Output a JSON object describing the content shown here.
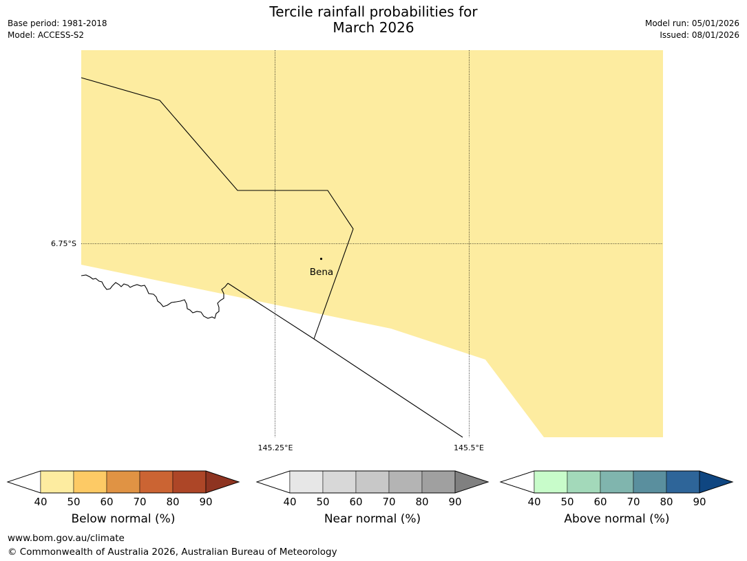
{
  "header": {
    "title_line1": "Tercile rainfall probabilities for",
    "title_line2": "March 2026",
    "base_period": "Base period: 1981-2018",
    "model": "Model: ACCESS-S2",
    "model_run": "Model run: 05/01/2026",
    "issued": "Issued: 08/01/2026"
  },
  "map": {
    "lat_label": "6.75°S",
    "lon_labels": [
      "145.25°E",
      "145.5°E"
    ],
    "place_label": "Bena",
    "probability_category": "Below normal",
    "probability_range": "40-50%",
    "colors": {
      "fill": "#fdeca0",
      "border": "#000000",
      "grid": "#000000"
    }
  },
  "colorbars": [
    {
      "title": "Below normal (%)",
      "ticks": [
        "40",
        "50",
        "60",
        "70",
        "80",
        "90"
      ],
      "colors": [
        "#fdeca0",
        "#fdca65",
        "#e09344",
        "#cb6433",
        "#ad4627"
      ],
      "arrow_color": "#8e3421"
    },
    {
      "title": "Near normal (%)",
      "ticks": [
        "40",
        "50",
        "60",
        "70",
        "80",
        "90"
      ],
      "colors": [
        "#e7e7e7",
        "#d8d8d8",
        "#c8c8c8",
        "#b4b4b4",
        "#a0a0a0"
      ],
      "arrow_color": "#808080"
    },
    {
      "title": "Above normal (%)",
      "ticks": [
        "40",
        "50",
        "60",
        "70",
        "80",
        "90"
      ],
      "colors": [
        "#c8fcca",
        "#a3d9ba",
        "#80b5ae",
        "#5a8f9e",
        "#2e6599"
      ],
      "arrow_color": "#0f4681"
    }
  ],
  "footer": {
    "website": "www.bom.gov.au/climate",
    "copyright": "© Commonwealth of Australia 2026, Australian Bureau of Meteorology"
  }
}
